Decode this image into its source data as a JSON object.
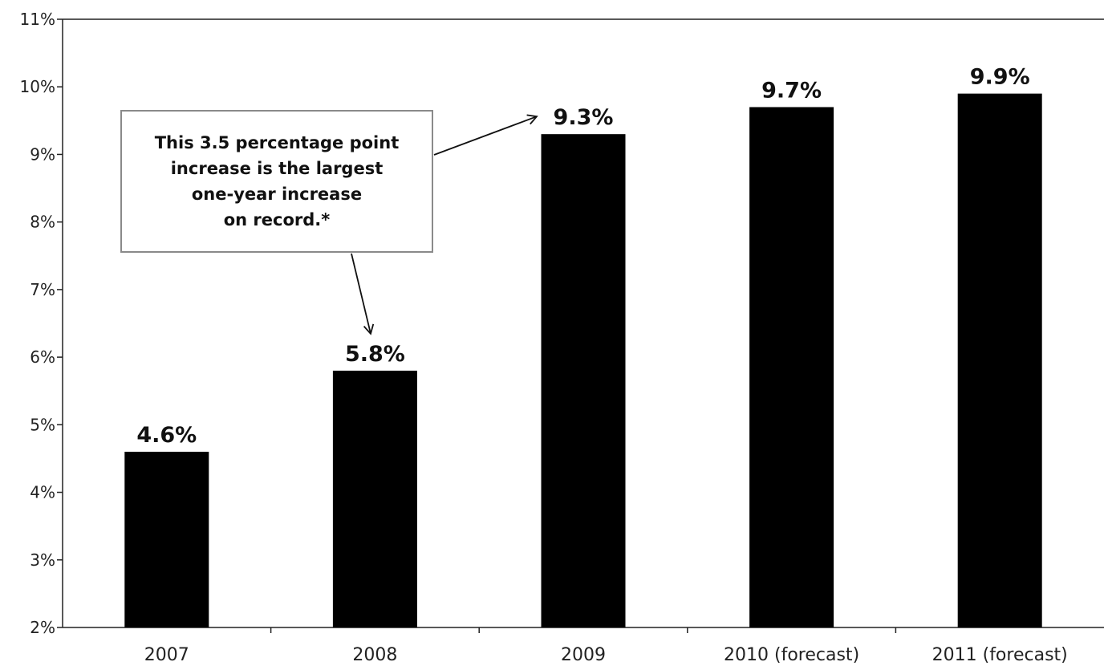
{
  "chart_data": {
    "type": "bar",
    "categories": [
      "2007",
      "2008",
      "2009",
      "2010 (forecast)",
      "2011 (forecast)"
    ],
    "values": [
      4.6,
      5.8,
      9.3,
      9.7,
      9.9
    ],
    "data_labels": [
      "4.6%",
      "5.8%",
      "9.3%",
      "9.7%",
      "9.9%"
    ],
    "ylim": [
      2,
      11
    ],
    "yticks": [
      2,
      3,
      4,
      5,
      6,
      7,
      8,
      9,
      10,
      11
    ],
    "ytick_labels": [
      "2%",
      "3%",
      "4%",
      "5%",
      "6%",
      "7%",
      "8%",
      "9%",
      "10%",
      "11%"
    ],
    "title": "",
    "xlabel": "",
    "ylabel": "",
    "grid": false,
    "legend": "none",
    "bar_color": "#000000",
    "annotation": {
      "text": "This 3.5 percentage point\nincrease is the largest\none-year increase\non record.*",
      "points_to": [
        "2008",
        "2009"
      ]
    }
  }
}
